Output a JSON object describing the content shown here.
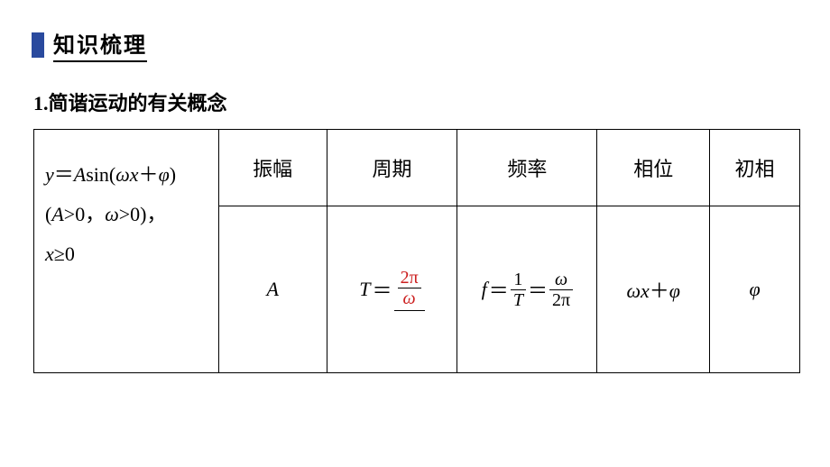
{
  "header": {
    "title": "知识梳理"
  },
  "subtitle": "1.简谐运动的有关概念",
  "table": {
    "headers": {
      "amplitude": "振幅",
      "period": "周期",
      "frequency": "频率",
      "phase": "相位",
      "initial_phase": "初相"
    },
    "formula_col": {
      "line1_prefix": "y",
      "line1_eq": "＝",
      "line1_A": "A",
      "line1_sin": "sin(",
      "line1_omega": "ω",
      "line1_x": "x",
      "line1_plus": "＋",
      "line1_phi": "φ",
      "line1_close": ")",
      "line2_open": "(",
      "line2_A": "A",
      "line2_gt0": ">0，",
      "line2_omega": "ω",
      "line2_gt0b": ">0)，",
      "line3_x": "x",
      "line3_ge": "≥0"
    },
    "values": {
      "amplitude": "A",
      "period_T": "T",
      "period_eq": "＝",
      "period_num": "2π",
      "period_den": "ω",
      "freq_f": "f",
      "freq_eq": "＝",
      "freq_num1": "1",
      "freq_den1": "T",
      "freq_eq2": "＝",
      "freq_num2": "ω",
      "freq_den2": "2π",
      "phase_omega": "ω",
      "phase_x": "x",
      "phase_plus": "＋",
      "phase_phi": "φ",
      "initial_phase": "φ"
    }
  },
  "colors": {
    "accent": "#2a4a9e",
    "highlight": "#cc2020",
    "text": "#000000",
    "background": "#ffffff"
  }
}
